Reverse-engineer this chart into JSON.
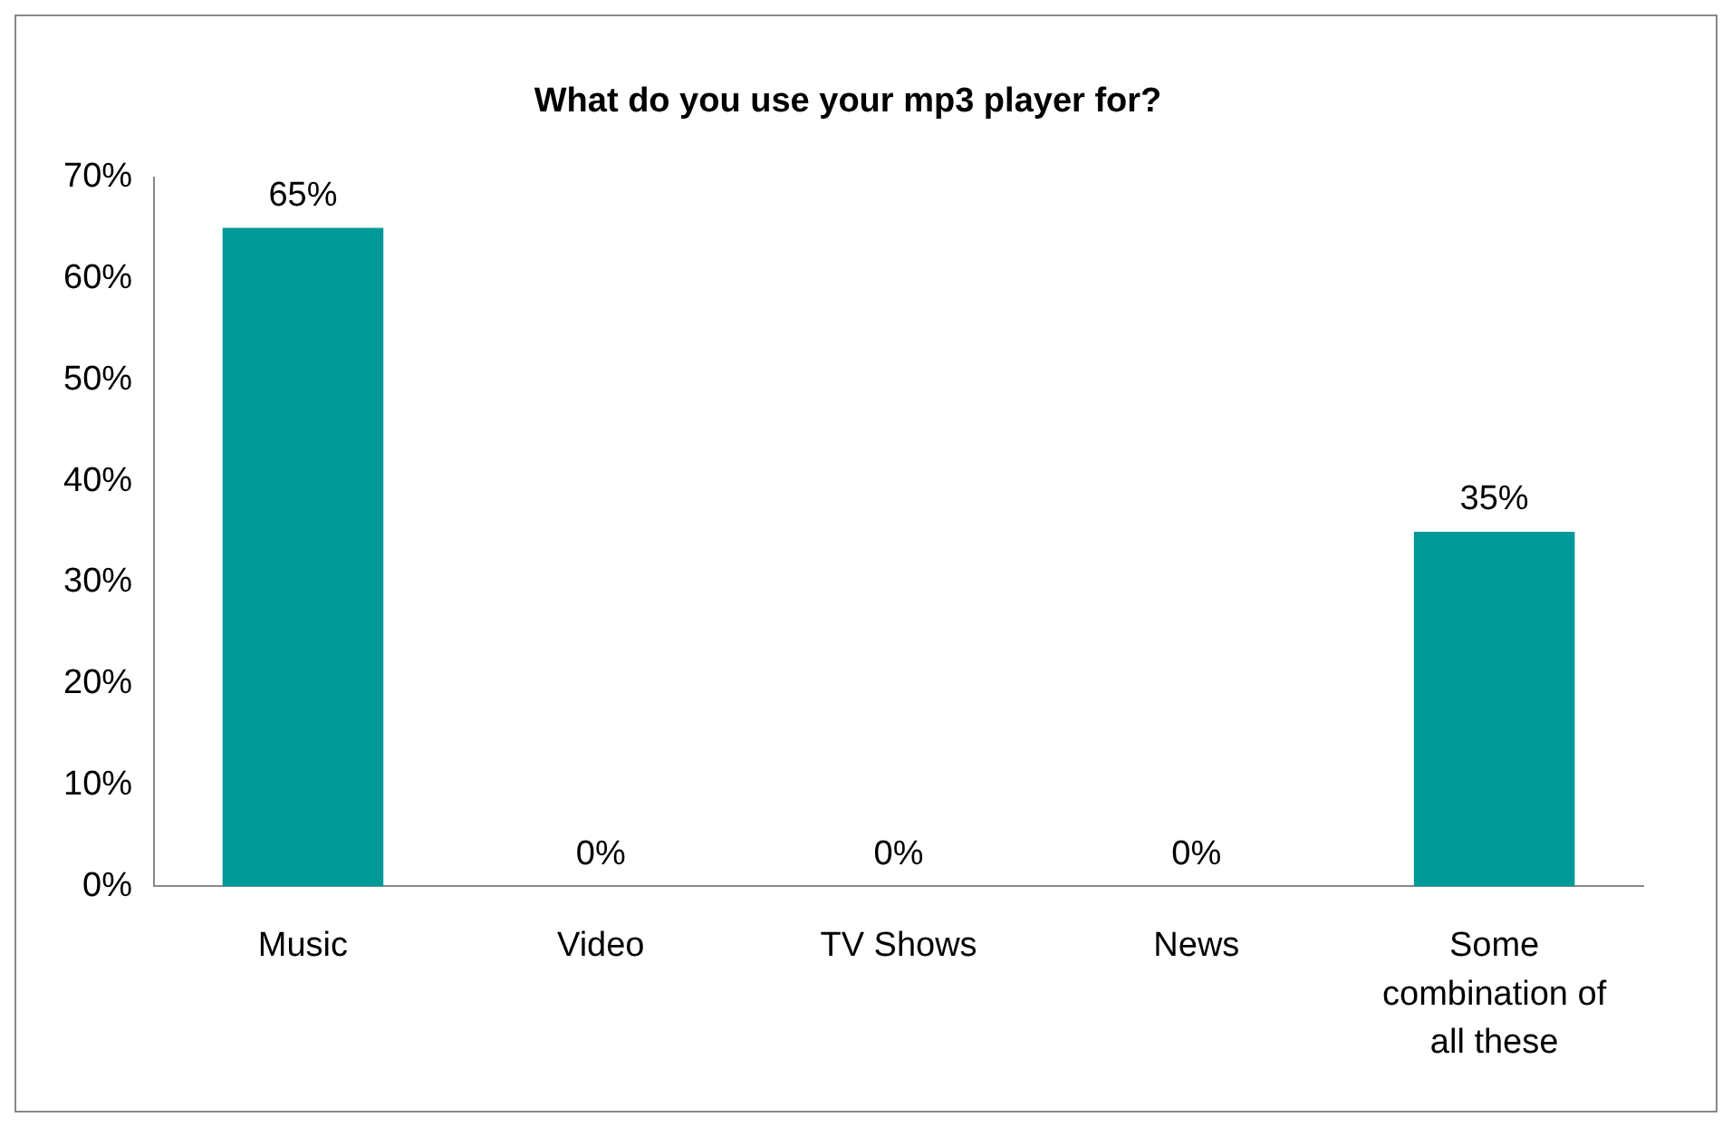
{
  "chart_data": {
    "type": "bar",
    "title": "What do you use your mp3 player for?",
    "categories": [
      "Music",
      "Video",
      "TV Shows",
      "News",
      "Some combination of all these"
    ],
    "values": [
      65,
      0,
      0,
      0,
      35
    ],
    "value_labels": [
      "65%",
      "0%",
      "0%",
      "0%",
      "35%"
    ],
    "color": "#009999",
    "ylim": [
      0,
      70
    ],
    "yticks": [
      {
        "value": 0,
        "label": "0%"
      },
      {
        "value": 10,
        "label": "10%"
      },
      {
        "value": 20,
        "label": "20%"
      },
      {
        "value": 30,
        "label": "30%"
      },
      {
        "value": 40,
        "label": "40%"
      },
      {
        "value": 50,
        "label": "50%"
      },
      {
        "value": 60,
        "label": "60%"
      },
      {
        "value": 70,
        "label": "70%"
      }
    ],
    "grid": false,
    "legend": false
  }
}
